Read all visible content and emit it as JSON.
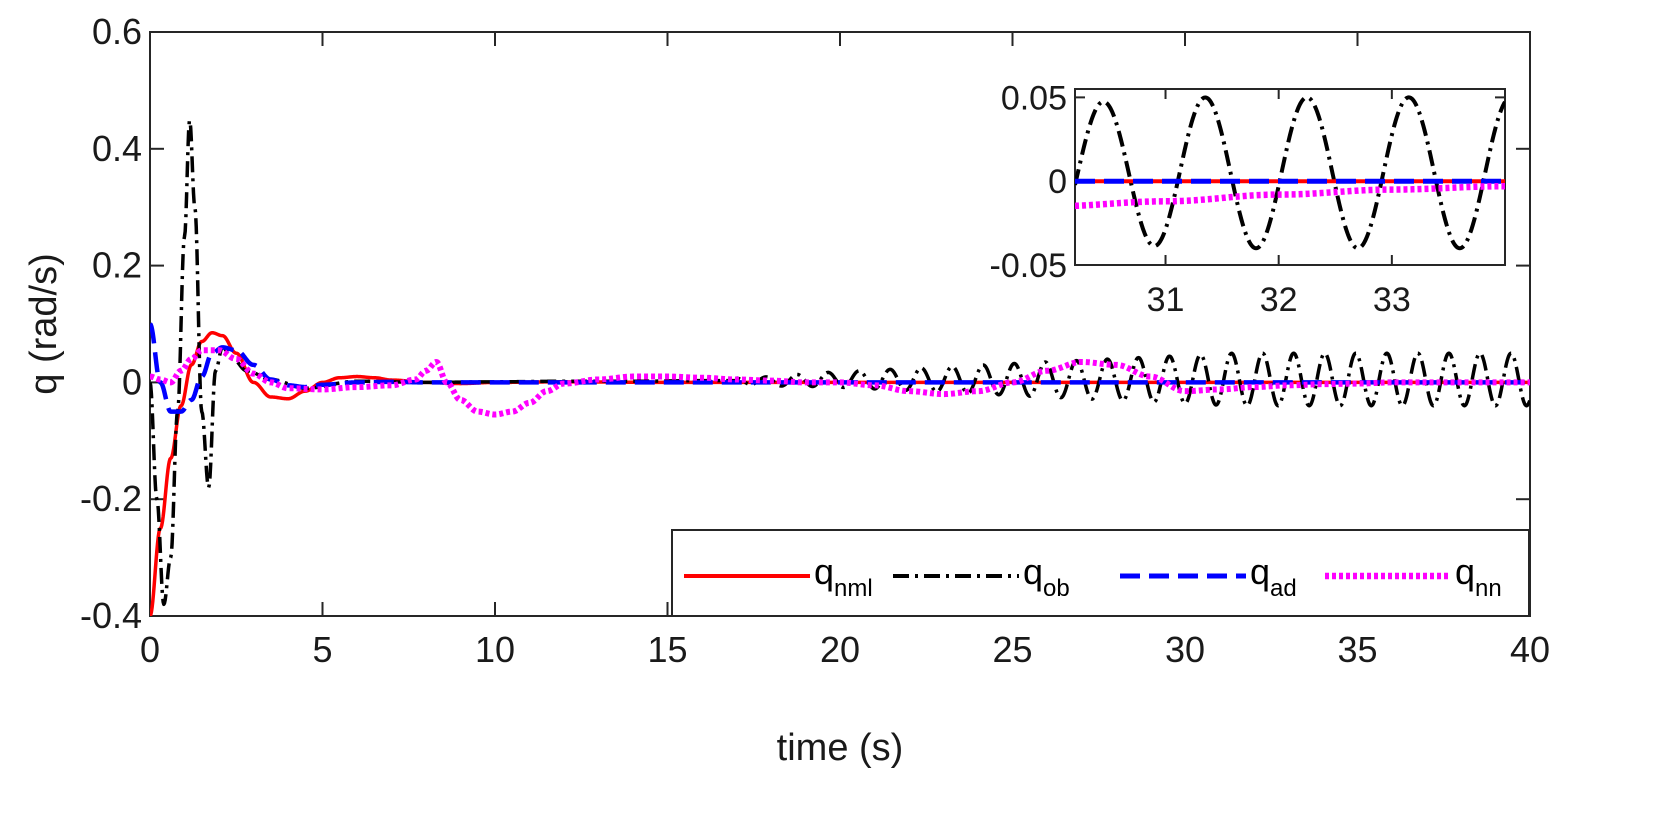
{
  "chart_data": [
    {
      "id": "main",
      "type": "line",
      "xlabel": "time (s)",
      "ylabel": "q (rad/s)",
      "xlim": [
        0,
        40
      ],
      "ylim": [
        -0.4,
        0.6
      ],
      "xticks": [
        0,
        5,
        10,
        15,
        20,
        25,
        30,
        35,
        40
      ],
      "xtick_labels": [
        "0",
        "5",
        "10",
        "15",
        "20",
        "25",
        "30",
        "35",
        "40"
      ],
      "yticks": [
        -0.4,
        -0.2,
        0,
        0.2,
        0.4,
        0.6
      ],
      "ytick_labels": [
        "-0.4",
        "-0.2",
        "0",
        "0.2",
        "0.4",
        "0.6"
      ],
      "grid": false,
      "legend_position": "bottom-right",
      "series": [
        {
          "name": "q_nml",
          "label_main": "q",
          "label_sub": "nml",
          "color": "#ff0000",
          "style": "solid",
          "x": [
            0,
            0.3,
            0.6,
            0.9,
            1.2,
            1.5,
            1.8,
            2.1,
            2.5,
            3.0,
            3.5,
            4.0,
            4.5,
            5.0,
            5.5,
            6.0,
            6.5,
            7.0,
            8.0,
            9.0,
            10,
            12,
            15,
            20,
            25,
            30,
            35,
            40
          ],
          "y": [
            -0.4,
            -0.25,
            -0.13,
            -0.04,
            0.03,
            0.07,
            0.085,
            0.08,
            0.05,
            0.0,
            -0.025,
            -0.028,
            -0.015,
            0.0,
            0.008,
            0.01,
            0.008,
            0.004,
            0.0,
            -0.002,
            0.0,
            0.001,
            0.0,
            0.0,
            0.0,
            0.0,
            0.0,
            0.0
          ]
        },
        {
          "name": "q_ob",
          "label_main": "q",
          "label_sub": "ob",
          "color": "#000000",
          "style": "dashdot",
          "x": [
            0,
            0.2,
            0.4,
            0.6,
            0.8,
            1.0,
            1.15,
            1.3,
            1.5,
            1.7,
            1.9,
            2.1,
            2.4,
            2.8,
            3.5,
            4.5,
            6,
            8,
            10,
            12,
            14,
            16,
            17,
            18,
            19,
            20
          ],
          "y": [
            0.0,
            -0.2,
            -0.38,
            -0.3,
            -0.05,
            0.25,
            0.45,
            0.3,
            -0.05,
            -0.18,
            0.02,
            0.06,
            0.04,
            0.02,
            0.005,
            -0.01,
            0.002,
            0.0,
            0.001,
            0.002,
            0.002,
            0.003,
            0.003,
            0.002,
            0.004,
            0.005
          ],
          "oscillation": {
            "x_start": 17,
            "x_end": 40,
            "period": 0.9,
            "amplitude_start": 0.005,
            "amplitude_end": 0.045,
            "phase_at_30": -1.57
          }
        },
        {
          "name": "q_ad",
          "label_main": "q",
          "label_sub": "ad",
          "color": "#0000ff",
          "style": "dashed",
          "x": [
            0,
            0.3,
            0.6,
            0.9,
            1.2,
            1.5,
            1.8,
            2.1,
            2.5,
            3.0,
            3.5,
            4.0,
            4.5,
            5.0,
            6.0,
            7.0,
            8.0,
            10,
            15,
            20,
            30,
            40
          ],
          "y": [
            0.1,
            0.0,
            -0.05,
            -0.05,
            -0.03,
            0.01,
            0.05,
            0.06,
            0.055,
            0.03,
            0.005,
            -0.005,
            -0.008,
            -0.004,
            0.0,
            0.001,
            0.0,
            0.0,
            0.0,
            0.0,
            0.0,
            0.0
          ]
        },
        {
          "name": "q_nn",
          "label_main": "q",
          "label_sub": "nn",
          "color": "#ff00ff",
          "style": "dotted",
          "x": [
            0,
            0.3,
            0.6,
            0.9,
            1.2,
            1.5,
            2.0,
            2.5,
            3.0,
            3.5,
            4.0,
            5.0,
            6.0,
            7.0,
            7.7,
            8.0,
            8.3,
            8.6,
            9.0,
            9.5,
            10.0,
            10.5,
            11.0,
            11.5,
            12.0,
            13.0,
            14.0,
            15,
            16,
            17,
            18,
            19,
            20,
            21,
            22,
            23,
            24,
            25,
            26,
            27,
            28,
            29,
            30,
            31,
            32,
            33,
            34,
            35,
            36,
            37,
            38,
            39,
            40
          ],
          "y": [
            0.01,
            0.005,
            0.0,
            0.02,
            0.04,
            0.055,
            0.055,
            0.04,
            0.015,
            0.0,
            -0.01,
            -0.012,
            -0.008,
            -0.005,
            0.005,
            0.02,
            0.035,
            0.0,
            -0.03,
            -0.05,
            -0.055,
            -0.05,
            -0.035,
            -0.015,
            -0.002,
            0.005,
            0.01,
            0.01,
            0.008,
            0.005,
            0.003,
            0.0,
            0.0,
            -0.005,
            -0.015,
            -0.02,
            -0.015,
            0.0,
            0.02,
            0.035,
            0.03,
            0.01,
            -0.015,
            -0.012,
            -0.008,
            -0.005,
            -0.003,
            -0.002,
            0.0,
            0.0,
            0.0,
            0.0,
            0.0
          ]
        }
      ]
    },
    {
      "id": "inset",
      "type": "line",
      "xlim": [
        30.2,
        34.0
      ],
      "ylim": [
        -0.05,
        0.055
      ],
      "xticks": [
        31,
        32,
        33
      ],
      "xtick_labels": [
        "31",
        "32",
        "33"
      ],
      "yticks": [
        -0.05,
        0,
        0.05
      ],
      "ytick_labels": [
        "-0.05",
        "0",
        "0.05"
      ],
      "series": [
        {
          "name": "q_ob",
          "color": "#000000",
          "style": "dashdot"
        },
        {
          "name": "q_nml",
          "color": "#ff0000",
          "style": "solid"
        },
        {
          "name": "q_ad",
          "color": "#0000ff",
          "style": "dashed"
        },
        {
          "name": "q_nn",
          "color": "#ff00ff",
          "style": "dotted"
        }
      ]
    }
  ]
}
